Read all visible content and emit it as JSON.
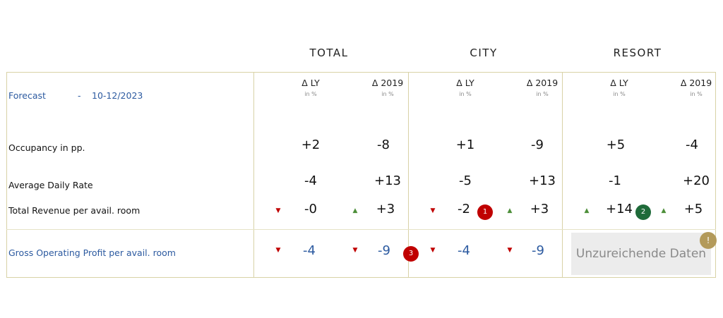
{
  "groups": {
    "total": "TOTAL",
    "city": "CITY",
    "resort": "RESORT"
  },
  "columns": {
    "ly_label": "Δ LY",
    "y2019_label": "Δ 2019",
    "unit": "in %"
  },
  "forecast": {
    "label": "Forecast",
    "dash": "-",
    "date": "10-12/2023"
  },
  "rows": {
    "occupancy": {
      "label": "Occupancy in pp.",
      "total_ly": "+2",
      "total_2019": "-8",
      "city_ly": "+1",
      "city_2019": "-9",
      "resort_ly": "+5",
      "resort_2019": "-4"
    },
    "adr": {
      "label": "Average Daily Rate",
      "total_ly": "-4",
      "total_2019": "+13",
      "city_ly": "-5",
      "city_2019": "+13",
      "resort_ly": "-1",
      "resort_2019": "+20"
    },
    "revpar": {
      "label": "Total Revenue per avail. room",
      "total_ly": "-0",
      "total_2019": "+3",
      "city_ly": "-2",
      "city_2019": "+3",
      "resort_ly": "+14",
      "resort_2019": "+5"
    },
    "gop": {
      "label": "Gross Operating Profit per avail. room",
      "total_ly": "-4",
      "total_2019": "-9",
      "city_ly": "-4",
      "city_2019": "-9",
      "resort_no_data": "Unzureichende Daten"
    }
  },
  "badges": {
    "one": "1",
    "two": "2",
    "three": "3",
    "warning": "!"
  },
  "colors": {
    "blue_text": "#2c5aa0",
    "down_arrow": "#c00000",
    "up_arrow": "#4d8f3a",
    "badge_red": "#c00000",
    "badge_green": "#1f6b3a",
    "badge_warning": "#b39a5a",
    "border": "#d8d2a6"
  },
  "icons": {
    "down": "▼",
    "up": "▲"
  }
}
